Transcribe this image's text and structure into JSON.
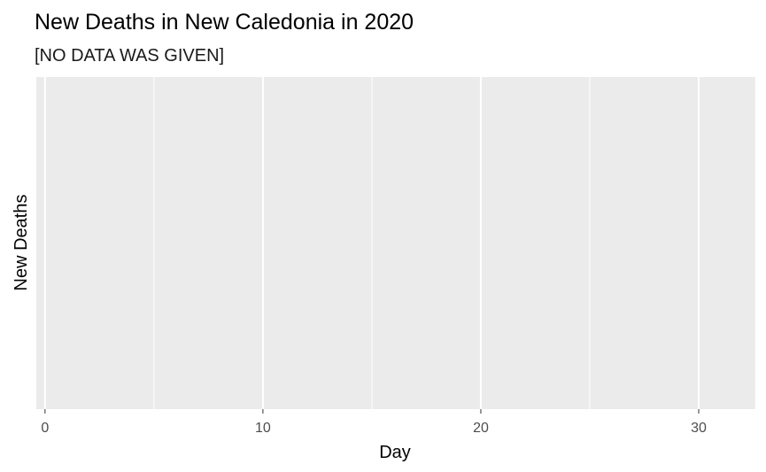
{
  "chart_data": {
    "type": "line",
    "title": "New Deaths in New Caledonia in 2020",
    "subtitle": "[NO DATA WAS GIVEN]",
    "xlabel": "Day",
    "ylabel": "New Deaths",
    "xlim": [
      -0.4,
      32.6
    ],
    "x_ticks": [
      0,
      10,
      20,
      30
    ],
    "x_minor": [
      5,
      15,
      25
    ],
    "series": [],
    "grid": true,
    "panel_background": "#ebebeb",
    "grid_color": "#ffffff",
    "tick_color": "#333333",
    "tick_label_color": "#4d4d4d"
  }
}
